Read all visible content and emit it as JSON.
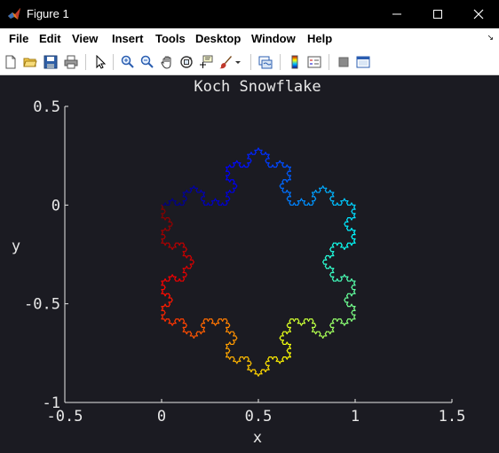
{
  "window": {
    "title": "Figure 1",
    "icon": "matlab-logo-icon"
  },
  "menubar": {
    "items": [
      {
        "label": "File"
      },
      {
        "label": "Edit"
      },
      {
        "label": "View"
      },
      {
        "label": "Insert"
      },
      {
        "label": "Tools"
      },
      {
        "label": "Desktop"
      },
      {
        "label": "Window"
      },
      {
        "label": "Help"
      }
    ]
  },
  "toolbar": {
    "icons": [
      "new-figure-icon",
      "open-file-icon",
      "save-icon",
      "print-icon",
      "pointer-icon",
      "zoom-in-icon",
      "zoom-out-icon",
      "pan-icon",
      "rotate-3d-icon",
      "data-cursor-icon",
      "brush-icon",
      "brush-dropdown-icon",
      "link-plot-icon",
      "colorbar-icon",
      "legend-icon",
      "hide-plot-tools-icon",
      "show-plot-tools-icon"
    ]
  },
  "chart_data": {
    "type": "line",
    "title": "Koch Snowflake",
    "xlabel": "x",
    "ylabel": "y",
    "xlim": [
      -0.5,
      1.5
    ],
    "ylim": [
      -1,
      0.5
    ],
    "xticks": [
      "-0.5",
      "0",
      "0.5",
      "1",
      "1.5"
    ],
    "yticks": [
      "0.5",
      "0",
      "-0.5",
      "-1"
    ],
    "xtick_values": [
      -0.5,
      0,
      0.5,
      1,
      1.5
    ],
    "ytick_values": [
      0.5,
      0,
      -0.5,
      -1
    ],
    "grid": false,
    "curve": "Koch snowflake, 4 iterations, vertices (0,0), (1,0), (0.5,-0.866), colored with a jet colormap along the path",
    "iterations": 4,
    "vertices": [
      [
        0,
        0
      ],
      [
        1,
        0
      ],
      [
        0.5,
        -0.866
      ]
    ],
    "colormap": "jet",
    "background": "#1b1b22",
    "axis_color": "#e8e8e8"
  }
}
